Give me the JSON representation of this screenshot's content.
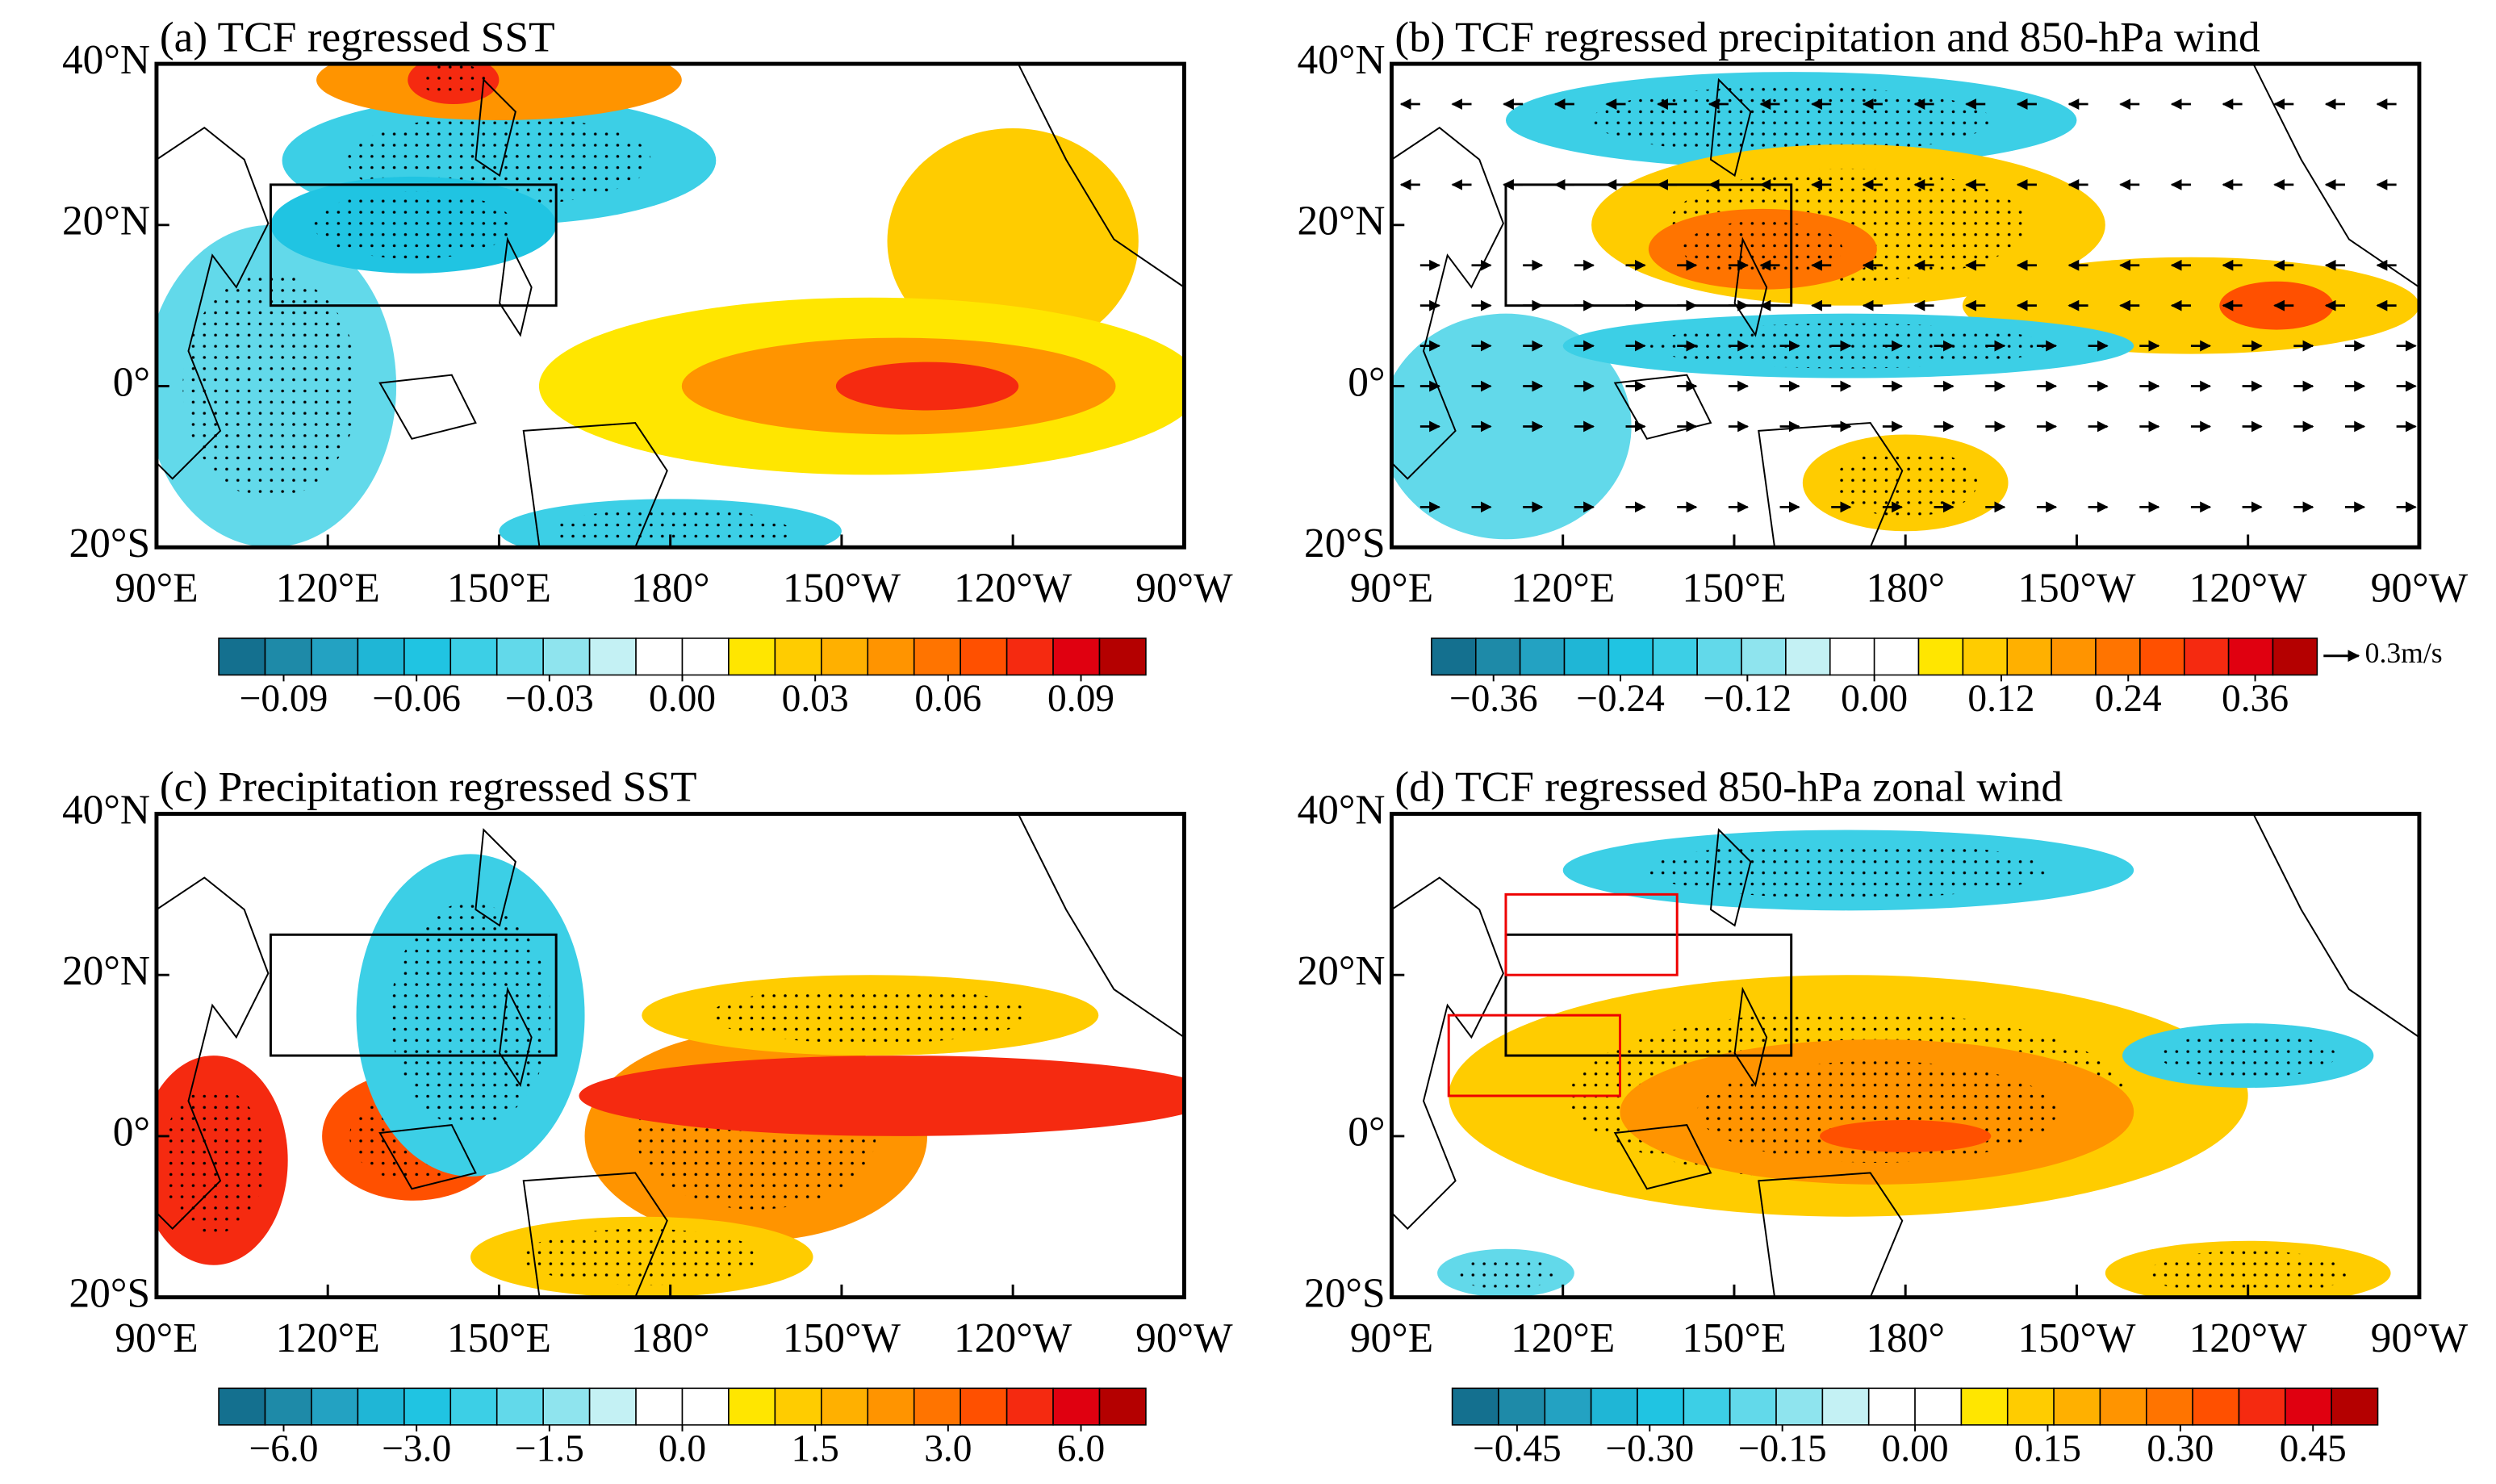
{
  "panels": [
    {
      "title": "(a) TCF regressed SST",
      "colorbar_ticks": [
        {
          "value": -0.09,
          "label": "−0.09"
        },
        {
          "value": -0.06,
          "label": "−0.06"
        },
        {
          "value": -0.03,
          "label": "−0.03"
        },
        {
          "value": 0,
          "label": "0.00"
        },
        {
          "value": 0.03,
          "label": "0.03"
        },
        {
          "value": 0.06,
          "label": "0.06"
        },
        {
          "value": 0.09,
          "label": "0.09"
        }
      ]
    },
    {
      "title": "(b) TCF regressed precipitation and 850-hPa wind",
      "colorbar_ticks": [
        {
          "value": -0.36,
          "label": "−0.36"
        },
        {
          "value": -0.24,
          "label": "−0.24"
        },
        {
          "value": -0.12,
          "label": "−0.12"
        },
        {
          "value": 0,
          "label": "0.00"
        },
        {
          "value": 0.12,
          "label": "0.12"
        },
        {
          "value": 0.24,
          "label": "0.24"
        },
        {
          "value": 0.36,
          "label": "0.36"
        }
      ],
      "vector_ref": "0.3m/s"
    },
    {
      "title": "(c) Precipitation regressed SST",
      "colorbar_ticks": [
        {
          "value": -6,
          "label": "−6.0"
        },
        {
          "value": -3,
          "label": "−3.0"
        },
        {
          "value": -1.5,
          "label": "−1.5"
        },
        {
          "value": 0,
          "label": "0.0"
        },
        {
          "value": 1.5,
          "label": "1.5"
        },
        {
          "value": 3,
          "label": "3.0"
        },
        {
          "value": 6,
          "label": "6.0"
        }
      ]
    },
    {
      "title": "(d) TCF regressed 850-hPa zonal wind",
      "colorbar_ticks": [
        {
          "value": -0.45,
          "label": "−0.45"
        },
        {
          "value": -0.3,
          "label": "−0.30"
        },
        {
          "value": -0.15,
          "label": "−0.15"
        },
        {
          "value": 0,
          "label": "0.00"
        },
        {
          "value": 0.15,
          "label": "0.15"
        },
        {
          "value": 0.3,
          "label": "0.30"
        },
        {
          "value": 0.45,
          "label": "0.45"
        }
      ]
    }
  ],
  "lon_ticks": [
    "90°E",
    "120°E",
    "150°E",
    "180°",
    "150°W",
    "120°W",
    "90°W"
  ],
  "lat_ticks": [
    "40°N",
    "20°N",
    "0°",
    "20°S"
  ],
  "palette": [
    "#14708f",
    "#1e8aa8",
    "#23a2c2",
    "#1fb6d6",
    "#20c4e2",
    "#3ccfe6",
    "#62d9ea",
    "#8fe4ee",
    "#c4f1f4",
    "#ffffff",
    "#ffffff",
    "#ffe600",
    "#ffcc00",
    "#ffb000",
    "#ff9400",
    "#ff7400",
    "#ff5000",
    "#f52a10",
    "#e00010",
    "#b40000"
  ]
}
